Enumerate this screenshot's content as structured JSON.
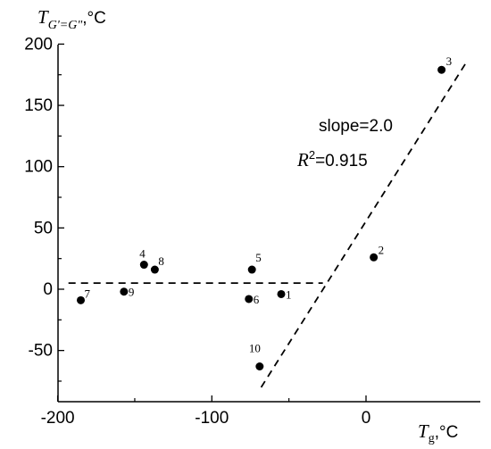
{
  "chart_data": {
    "type": "scatter",
    "x_axis": {
      "min": -200,
      "max": 50,
      "ticks": [
        "-200",
        "-100",
        "0"
      ],
      "tick_values": [
        -200,
        -100,
        0
      ]
    },
    "y_axis": {
      "min": -80,
      "max": 200,
      "ticks": [
        "-50",
        "0",
        "50",
        "100",
        "150",
        "200"
      ],
      "tick_values": [
        -50,
        0,
        50,
        100,
        150,
        200
      ]
    },
    "xlabel": {
      "main": "T",
      "sub": "g",
      "unit": ",°C"
    },
    "ylabel": {
      "main": "T",
      "sub": "G'=G\"",
      "unit": ",°C"
    },
    "points": [
      {
        "label": "1",
        "x": -55,
        "y": -4
      },
      {
        "label": "2",
        "x": 5,
        "y": 26
      },
      {
        "label": "3",
        "x": 49,
        "y": 179
      },
      {
        "label": "4",
        "x": -144,
        "y": 20
      },
      {
        "label": "5",
        "x": -74,
        "y": 16
      },
      {
        "label": "6",
        "x": -76,
        "y": -8
      },
      {
        "label": "7",
        "x": -185,
        "y": -9
      },
      {
        "label": "8",
        "x": -137,
        "y": 16
      },
      {
        "label": "9",
        "x": -157,
        "y": -2
      },
      {
        "label": "10",
        "x": -69,
        "y": -63
      }
    ],
    "lines": [
      {
        "style": "dashed",
        "x": [
          -193,
          -28
        ],
        "y": [
          5,
          5
        ]
      },
      {
        "style": "dashed",
        "x": [
          -68,
          66
        ],
        "y": [
          -80,
          187
        ]
      }
    ],
    "annotations": {
      "slope": "slope=2.0",
      "r2_main": "R",
      "r2_sup": "2",
      "r2_value": "=0.915"
    },
    "grid": false,
    "legend": "none"
  }
}
